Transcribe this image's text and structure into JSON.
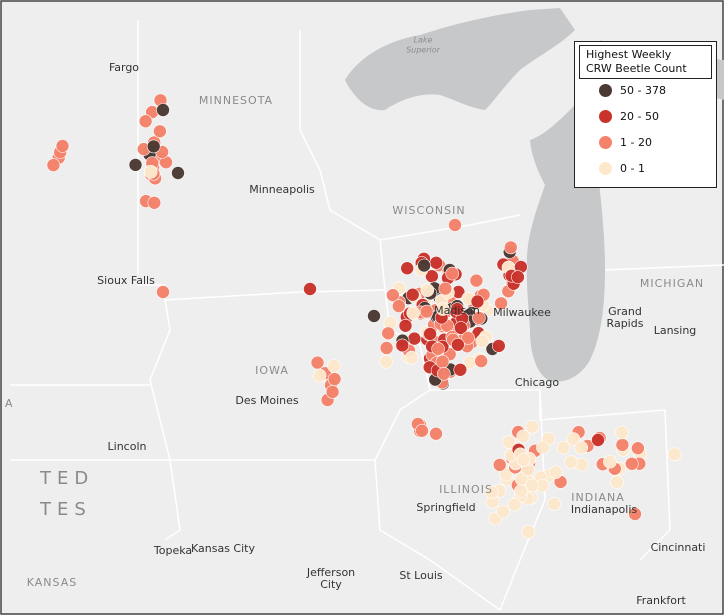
{
  "labels": [
    {
      "text": "Fargo",
      "kind": "city"
    },
    {
      "text": "MINNESOTA",
      "kind": "state"
    },
    {
      "text": "Lake",
      "kind": "water"
    },
    {
      "text": "Superior",
      "kind": "water"
    },
    {
      "text": "Minneapolis",
      "kind": "city"
    },
    {
      "text": "WISCONSIN",
      "kind": "state"
    },
    {
      "text": "Sioux Falls",
      "kind": "city"
    },
    {
      "text": "MICHIGAN",
      "kind": "state"
    },
    {
      "text": "Grand",
      "kind": "city"
    },
    {
      "text": "Rapids",
      "kind": "city"
    },
    {
      "text": "Lansing",
      "kind": "city"
    },
    {
      "text": "Madison",
      "kind": "city"
    },
    {
      "text": "Milwaukee",
      "kind": "city"
    },
    {
      "text": "IOWA",
      "kind": "state"
    },
    {
      "text": "Des Moines",
      "kind": "city"
    },
    {
      "text": "Chicago",
      "kind": "city"
    },
    {
      "text": "A",
      "kind": "state"
    },
    {
      "text": "Lincoln",
      "kind": "city"
    },
    {
      "text": "TED",
      "kind": "country"
    },
    {
      "text": "TES",
      "kind": "country"
    },
    {
      "text": "ILLINOIS",
      "kind": "state"
    },
    {
      "text": "INDIANA",
      "kind": "state"
    },
    {
      "text": "Springfield",
      "kind": "city"
    },
    {
      "text": "Indianapolis",
      "kind": "city"
    },
    {
      "text": "Topeka",
      "kind": "city"
    },
    {
      "text": "Kansas City",
      "kind": "city"
    },
    {
      "text": "Jefferson",
      "kind": "city"
    },
    {
      "text": "City",
      "kind": "city"
    },
    {
      "text": "St Louis",
      "kind": "city"
    },
    {
      "text": "Cincinnati",
      "kind": "city"
    },
    {
      "text": "KANSAS",
      "kind": "state"
    },
    {
      "text": "Frankfort",
      "kind": "city"
    }
  ],
  "legend": {
    "title_lines": [
      "Highest Weekly",
      "CRW Beetle Count"
    ],
    "items": [
      {
        "label": "50 - 378",
        "color": "#4b3a33"
      },
      {
        "label": "20 - 50",
        "color": "#c9332c"
      },
      {
        "label": "1 - 20",
        "color": "#f4826b"
      },
      {
        "label": "0 - 1",
        "color": "#fde8cc"
      }
    ]
  }
}
